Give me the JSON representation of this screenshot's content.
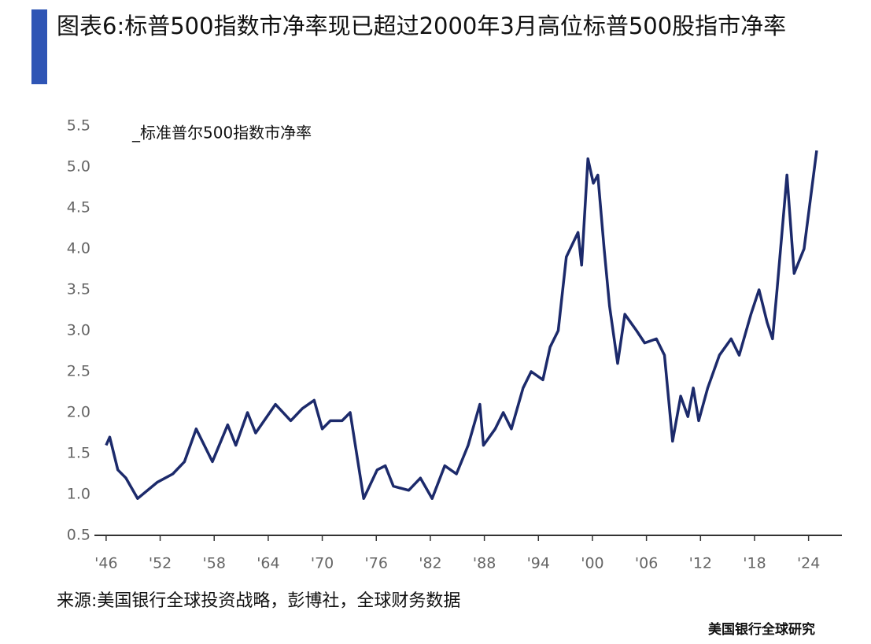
{
  "chart_data": {
    "type": "line",
    "title": "图表6:标普500指数市净率现已超过2000年3月高位标普500股指市净率",
    "source": "来源:美国银行全球投资战略，彭博社，全球财务数据",
    "footer": "美国银行全球研究",
    "x": [
      1946,
      1946.4,
      1947.3,
      1948.2,
      1949.5,
      1951.7,
      1953.4,
      1954.7,
      1956,
      1957.8,
      1959.5,
      1960.4,
      1961.7,
      1962.6,
      1964.8,
      1966.5,
      1967.8,
      1969.1,
      1970,
      1970.9,
      1972.2,
      1973.1,
      1974.6,
      1976.1,
      1977,
      1977.9,
      1979.6,
      1980.9,
      1982.2,
      1983.6,
      1984.9,
      1986.2,
      1987.5,
      1987.9,
      1989.2,
      1990.1,
      1991,
      1992.3,
      1993.2,
      1994.5,
      1995.3,
      1996.2,
      1997.1,
      1998.4,
      1998.8,
      1999.5,
      2000.1,
      2000.6,
      2001.3,
      2001.9,
      2002.8,
      2003.6,
      2004.9,
      2005.8,
      2007.1,
      2008,
      2008.9,
      2009.8,
      2010.6,
      2011.2,
      2011.8,
      2012.8,
      2014.1,
      2015.4,
      2016.3,
      2017.6,
      2018.5,
      2019.4,
      2020,
      2020.5,
      2021.6,
      2022.4,
      2023.5,
      2024.2,
      2024.9
    ],
    "series": [
      {
        "name": "_标准普尔500指数市净率",
        "color": "#1c2a6b",
        "values": [
          1.6,
          1.7,
          1.3,
          1.2,
          0.95,
          1.15,
          1.25,
          1.4,
          1.8,
          1.4,
          1.85,
          1.6,
          2.0,
          1.75,
          2.1,
          1.9,
          2.05,
          2.15,
          1.8,
          1.9,
          1.9,
          2.0,
          0.95,
          1.3,
          1.35,
          1.1,
          1.05,
          1.2,
          0.95,
          1.35,
          1.25,
          1.6,
          2.1,
          1.6,
          1.8,
          2.0,
          1.8,
          2.3,
          2.5,
          2.4,
          2.8,
          3.0,
          3.9,
          4.2,
          3.8,
          5.1,
          4.8,
          4.9,
          4.0,
          3.3,
          2.6,
          3.2,
          3.0,
          2.85,
          2.9,
          2.7,
          1.65,
          2.2,
          1.95,
          2.3,
          1.9,
          2.3,
          2.7,
          2.9,
          2.7,
          3.2,
          3.5,
          3.1,
          2.9,
          3.5,
          4.9,
          3.7,
          4.0,
          4.6,
          5.2
        ]
      }
    ],
    "xlim": [
      1944.7,
      2027.7
    ],
    "xticks": [
      {
        "value": 1946,
        "label": "'46"
      },
      {
        "value": 1952,
        "label": "'52"
      },
      {
        "value": 1958,
        "label": "'58"
      },
      {
        "value": 1964,
        "label": "'64"
      },
      {
        "value": 1970,
        "label": "'70"
      },
      {
        "value": 1976,
        "label": "'76"
      },
      {
        "value": 1982,
        "label": "'82"
      },
      {
        "value": 1988,
        "label": "'88"
      },
      {
        "value": 1994,
        "label": "'94"
      },
      {
        "value": 2000,
        "label": "'00"
      },
      {
        "value": 2006,
        "label": "'06"
      },
      {
        "value": 2012,
        "label": "'12"
      },
      {
        "value": 2018,
        "label": "'18"
      },
      {
        "value": 2024,
        "label": "'24"
      }
    ],
    "ylim": [
      0.5,
      5.5
    ],
    "yticks": [
      0.5,
      {
        "value": 1,
        "label": "1.0"
      },
      1.5,
      {
        "value": 2,
        "label": "2.0"
      },
      2.5,
      {
        "value": 3,
        "label": "3.0"
      },
      3.5,
      {
        "value": 4,
        "label": "4.0"
      },
      4.5,
      {
        "value": 5,
        "label": "5.0"
      },
      5.5
    ]
  }
}
